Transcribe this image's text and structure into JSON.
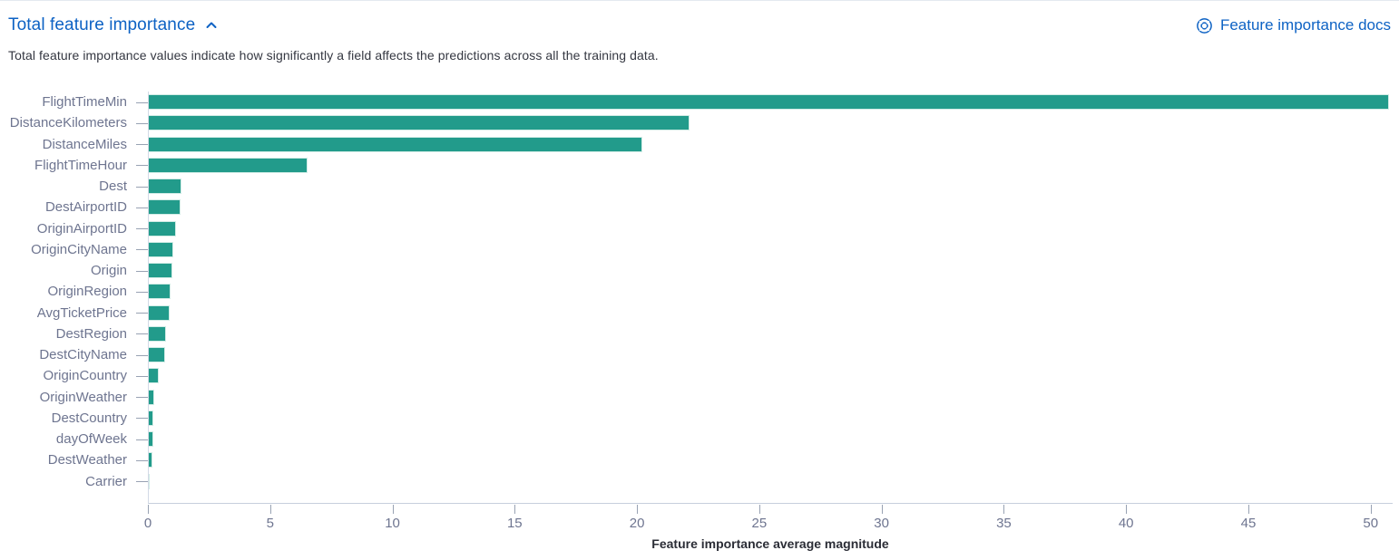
{
  "header": {
    "title": "Total feature importance",
    "collapse_icon": "chevron-up-icon",
    "docs_link_label": "Feature importance docs",
    "docs_icon": "help-lifebuoy-icon",
    "link_color": "#0d62c4"
  },
  "description": "Total feature importance values indicate how significantly a field affects the predictions across all the training data.",
  "chart_data": {
    "type": "bar",
    "orientation": "horizontal",
    "title": "",
    "xlabel": "Feature importance average magnitude",
    "ylabel": "",
    "categories": [
      "FlightTimeMin",
      "DistanceKilometers",
      "DistanceMiles",
      "FlightTimeHour",
      "Dest",
      "DestAirportID",
      "OriginAirportID",
      "OriginCityName",
      "Origin",
      "OriginRegion",
      "AvgTicketPrice",
      "DestRegion",
      "DestCityName",
      "OriginCountry",
      "OriginWeather",
      "DestCountry",
      "dayOfWeek",
      "DestWeather",
      "Carrier"
    ],
    "values": [
      50.7,
      22.1,
      20.2,
      6.5,
      1.35,
      1.3,
      1.1,
      1.0,
      0.97,
      0.9,
      0.85,
      0.72,
      0.65,
      0.4,
      0.22,
      0.2,
      0.18,
      0.15,
      0.05
    ],
    "x_ticks": [
      0,
      5,
      10,
      15,
      20,
      25,
      30,
      35,
      40,
      45,
      50
    ],
    "xlim": [
      0,
      50.9
    ],
    "grid": false,
    "legend": false,
    "bar_color": "#229b8b"
  }
}
